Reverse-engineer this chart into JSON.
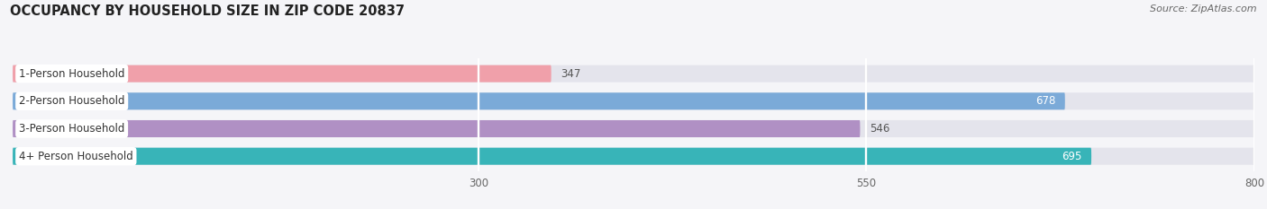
{
  "title": "OCCUPANCY BY HOUSEHOLD SIZE IN ZIP CODE 20837",
  "source": "Source: ZipAtlas.com",
  "categories": [
    "1-Person Household",
    "2-Person Household",
    "3-Person Household",
    "4+ Person Household"
  ],
  "values": [
    347,
    678,
    546,
    695
  ],
  "bar_colors": [
    "#f0a0aa",
    "#7baad8",
    "#b090c4",
    "#38b4b8"
  ],
  "label_colors": [
    "#555555",
    "#ffffff",
    "#555555",
    "#ffffff"
  ],
  "xlim": [
    0,
    800
  ],
  "xticks": [
    300,
    550,
    800
  ],
  "background_color": "#f5f5f8",
  "bar_bg_color": "#e4e4ec",
  "title_fontsize": 10.5,
  "source_fontsize": 8,
  "label_fontsize": 8.5,
  "value_fontsize": 8.5
}
